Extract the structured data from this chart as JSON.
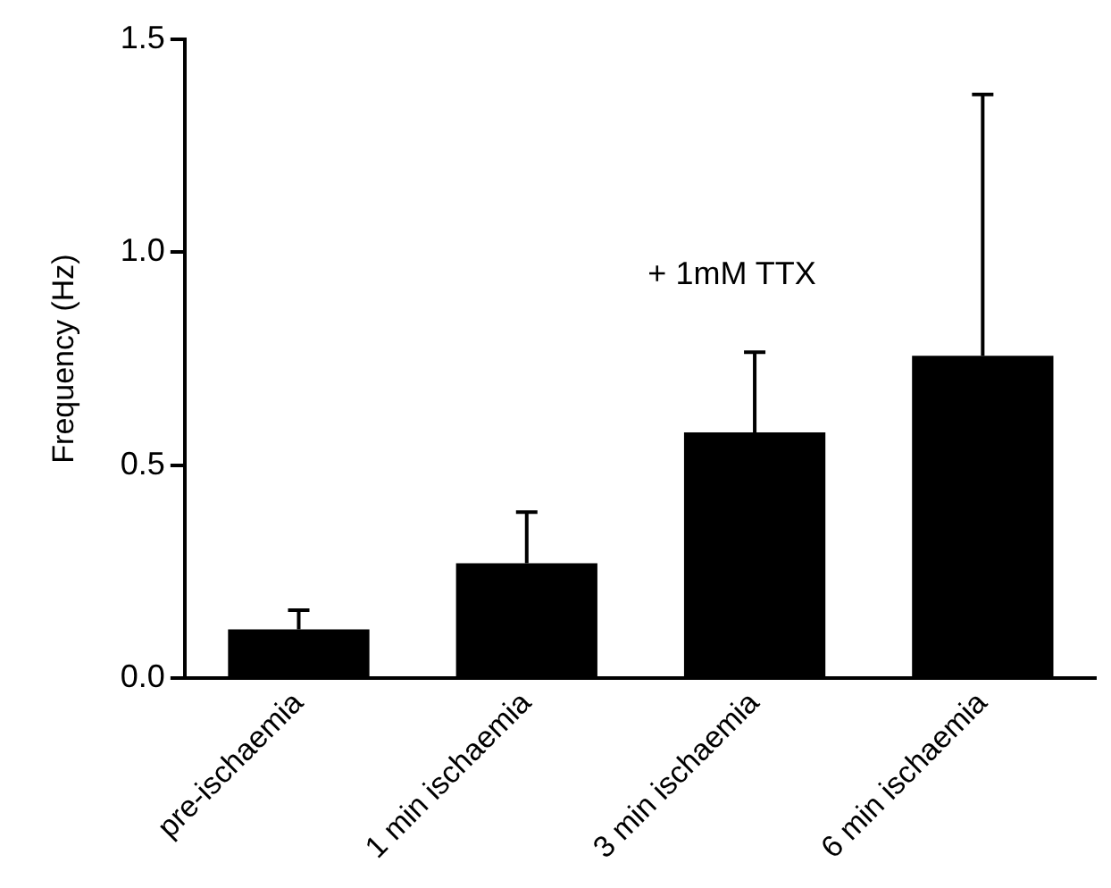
{
  "chart_data": {
    "type": "bar",
    "ylabel": "Frequency (Hz)",
    "categories": [
      "pre-ischaemia",
      "1 min ischaemia",
      "3 min ischaemia",
      "6 min ischaemia"
    ],
    "values": [
      0.115,
      0.27,
      0.577,
      0.757
    ],
    "color": "#000000",
    "errors": [
      [
        0.115,
        0.16
      ],
      [
        0.27,
        0.39
      ],
      [
        0.577,
        0.765
      ],
      [
        0.757,
        1.37
      ]
    ],
    "ylim": [
      0,
      1.5
    ],
    "yticks": [
      {
        "value": 0,
        "label": "0.0"
      },
      {
        "value": 0.5,
        "label": "0.5"
      },
      {
        "value": 1,
        "label": "1.0"
      },
      {
        "value": 1.5,
        "label": "1.5"
      }
    ],
    "annotations": [
      "+ 1mM TTX"
    ],
    "grid": false,
    "legend": false
  }
}
